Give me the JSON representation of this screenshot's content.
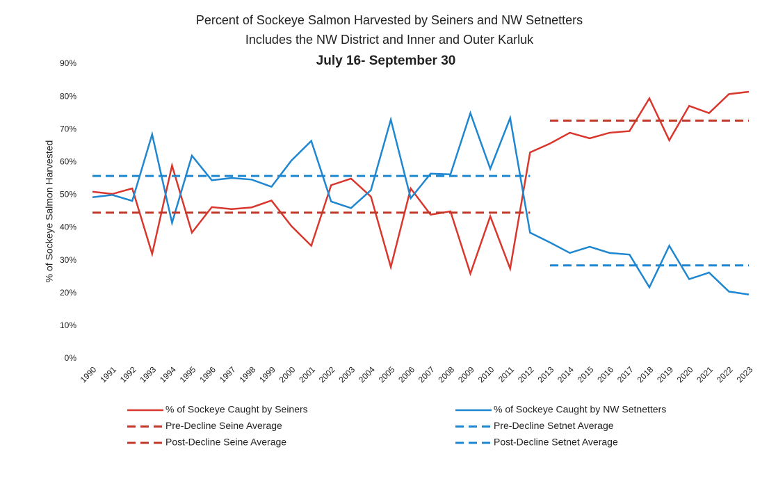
{
  "chart_data": {
    "type": "line",
    "title": "Percent of Sockeye Salmon Harvested by Seiners and NW Setnetters",
    "subtitle": "Includes the NW District and Inner and Outer Karluk",
    "subtitle2": "July 16- September 30",
    "ylabel": "% of Sockeye Salmon Harvested",
    "categories": [
      "1990",
      "1991",
      "1992",
      "1993",
      "1994",
      "1995",
      "1996",
      "1997",
      "1998",
      "1999",
      "2000",
      "2001",
      "2002",
      "2003",
      "2004",
      "2005",
      "2006",
      "2007",
      "2008",
      "2009",
      "2010",
      "2011",
      "2012",
      "2013",
      "2014",
      "2015",
      "2016",
      "2017",
      "2018",
      "2019",
      "2020",
      "2021",
      "2022",
      "2023"
    ],
    "ylim": [
      0,
      90
    ],
    "yticks": [
      {
        "value": 0,
        "label": "0%"
      },
      {
        "value": 10,
        "label": "10%"
      },
      {
        "value": 20,
        "label": "20%"
      },
      {
        "value": 30,
        "label": "30%"
      },
      {
        "value": 40,
        "label": "40%"
      },
      {
        "value": 50,
        "label": "50%"
      },
      {
        "value": 60,
        "label": "60%"
      },
      {
        "value": 70,
        "label": "70%"
      },
      {
        "value": 80,
        "label": "80%"
      },
      {
        "value": 90,
        "label": "90%"
      }
    ],
    "grid": false,
    "series": [
      {
        "name": "% of Sockeye Caught by Seiners",
        "color": "#d9372d",
        "dashed": false,
        "values": [
          51,
          50.3,
          52,
          32,
          59,
          38.5,
          46.3,
          45.7,
          46.2,
          48.3,
          40.5,
          34.5,
          53,
          55,
          49.5,
          28,
          52,
          44,
          45,
          26,
          43.5,
          27.5,
          63,
          65.7,
          69,
          67.3,
          69,
          69.5,
          79.5,
          66.7,
          77.2,
          75,
          80.8,
          81.5
        ]
      },
      {
        "name": "% of Sockeye Caught by NW Setnetters",
        "color": "#1f86d0",
        "dashed": false,
        "values": [
          49.3,
          50,
          48.2,
          68.5,
          41.5,
          62,
          54.5,
          55.2,
          54.7,
          52.5,
          60.5,
          66.5,
          48,
          46,
          51.5,
          73,
          49,
          56.5,
          56.3,
          75,
          58,
          73.5,
          38.5,
          35.5,
          32.3,
          34.2,
          32.3,
          31.8,
          21.8,
          34.5,
          24.3,
          26.3,
          20.5,
          19.6
        ]
      },
      {
        "name": "Pre-Decline Seine Average",
        "color": "#c0392b",
        "dashed": true,
        "values": [
          44.6,
          44.6,
          44.6,
          44.6,
          44.6,
          44.6,
          44.6,
          44.6,
          44.6,
          44.6,
          44.6,
          44.6,
          44.6,
          44.6,
          44.6,
          44.6,
          44.6,
          44.6,
          44.6,
          44.6,
          44.6,
          44.6,
          44.6,
          null,
          null,
          null,
          null,
          null,
          null,
          null,
          null,
          null,
          null,
          null
        ]
      },
      {
        "name": "Pre-Decline Setnet Average",
        "color": "#1f86d0",
        "dashed": true,
        "values": [
          55.8,
          55.8,
          55.8,
          55.8,
          55.8,
          55.8,
          55.8,
          55.8,
          55.8,
          55.8,
          55.8,
          55.8,
          55.8,
          55.8,
          55.8,
          55.8,
          55.8,
          55.8,
          55.8,
          55.8,
          55.8,
          55.8,
          55.8,
          null,
          null,
          null,
          null,
          null,
          null,
          null,
          null,
          null,
          null,
          null
        ]
      },
      {
        "name": "Post-Decline Seine Average",
        "color": "#c0392b",
        "dashed": true,
        "values": [
          null,
          null,
          null,
          null,
          null,
          null,
          null,
          null,
          null,
          null,
          null,
          null,
          null,
          null,
          null,
          null,
          null,
          null,
          null,
          null,
          null,
          null,
          null,
          72.7,
          72.7,
          72.7,
          72.7,
          72.7,
          72.7,
          72.7,
          72.7,
          72.7,
          72.7,
          72.7
        ]
      },
      {
        "name": "Post-Decline Setnet Average",
        "color": "#1f86d0",
        "dashed": true,
        "values": [
          null,
          null,
          null,
          null,
          null,
          null,
          null,
          null,
          null,
          null,
          null,
          null,
          null,
          null,
          null,
          null,
          null,
          null,
          null,
          null,
          null,
          null,
          null,
          28.5,
          28.5,
          28.5,
          28.5,
          28.5,
          28.5,
          28.5,
          28.5,
          28.5,
          28.5,
          28.5
        ]
      }
    ]
  }
}
